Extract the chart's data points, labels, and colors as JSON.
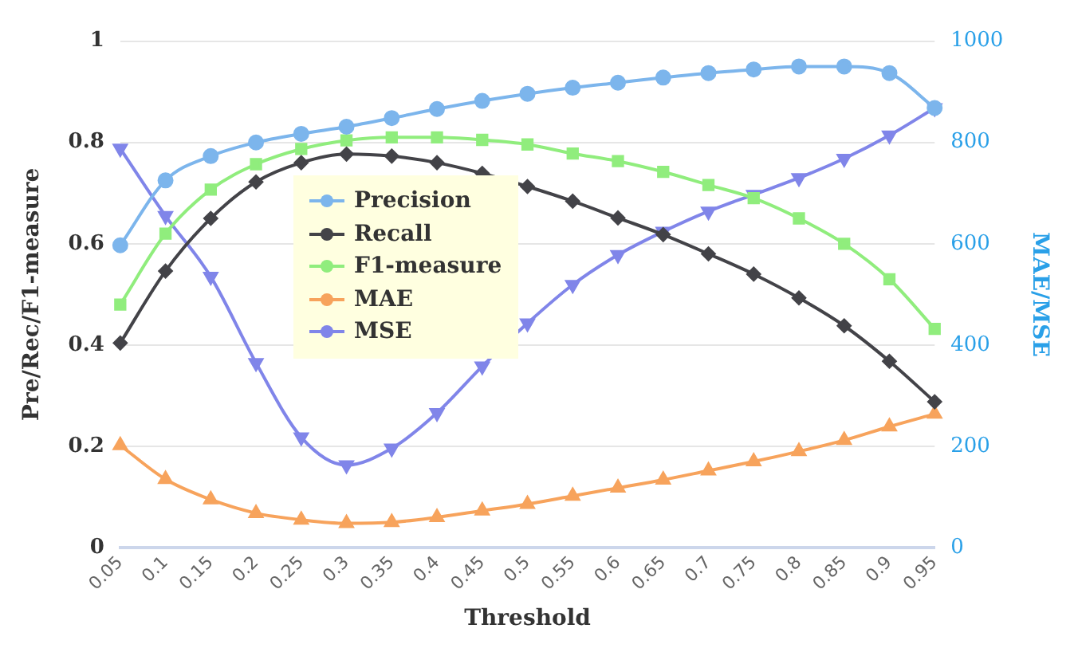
{
  "chart_data": {
    "type": "line",
    "xlabel": "Threshold",
    "ylabel": "Pre/Rec/F1-measure",
    "y2label": "MAE/MSE",
    "categories": [
      "0.05",
      "0.1",
      "0.15",
      "0.2",
      "0.25",
      "0.3",
      "0.35",
      "0.4",
      "0.45",
      "0.5",
      "0.55",
      "0.6",
      "0.65",
      "0.7",
      "0.75",
      "0.8",
      "0.85",
      "0.9",
      "0.95"
    ],
    "series": [
      {
        "name": "Precision",
        "color": "#7cb5ec",
        "marker": "circle",
        "values": [
          0.597,
          0.725,
          0.773,
          0.8,
          0.817,
          0.831,
          0.848,
          0.866,
          0.882,
          0.896,
          0.908,
          0.918,
          0.928,
          0.937,
          0.944,
          0.95,
          0.95,
          0.937,
          0.868
        ]
      },
      {
        "name": "Recall",
        "color": "#434348",
        "marker": "diamond",
        "values": [
          0.404,
          0.546,
          0.65,
          0.722,
          0.76,
          0.777,
          0.773,
          0.76,
          0.739,
          0.713,
          0.684,
          0.651,
          0.618,
          0.58,
          0.54,
          0.493,
          0.438,
          0.368,
          0.288
        ]
      },
      {
        "name": "F1-measure",
        "color": "#90ed7d",
        "marker": "square",
        "values": [
          0.48,
          0.62,
          0.707,
          0.757,
          0.787,
          0.804,
          0.81,
          0.81,
          0.805,
          0.796,
          0.778,
          0.763,
          0.742,
          0.716,
          0.69,
          0.65,
          0.6,
          0.53,
          0.432
        ]
      },
      {
        "name": "MAE",
        "color": "#f7a35c",
        "marker": "triangle",
        "axis": "y2",
        "values": [
          202,
          135,
          95,
          68,
          55,
          48,
          50,
          60,
          73,
          86,
          102,
          118,
          134,
          152,
          170,
          190,
          212,
          239,
          264
        ]
      },
      {
        "name": "MSE",
        "color": "#8085e9",
        "marker": "triangle-down",
        "axis": "y2",
        "values": [
          788,
          655,
          535,
          365,
          218,
          163,
          196,
          266,
          358,
          443,
          519,
          578,
          624,
          664,
          697,
          730,
          768,
          814,
          868
        ]
      }
    ],
    "ylim": [
      0,
      1
    ],
    "yticks": [
      0,
      0.2,
      0.4,
      0.6,
      0.8,
      1
    ],
    "y2lim": [
      0,
      1000
    ],
    "y2ticks": [
      0,
      200,
      400,
      600,
      800,
      1000
    ],
    "grid": "y",
    "legend": "center left"
  }
}
